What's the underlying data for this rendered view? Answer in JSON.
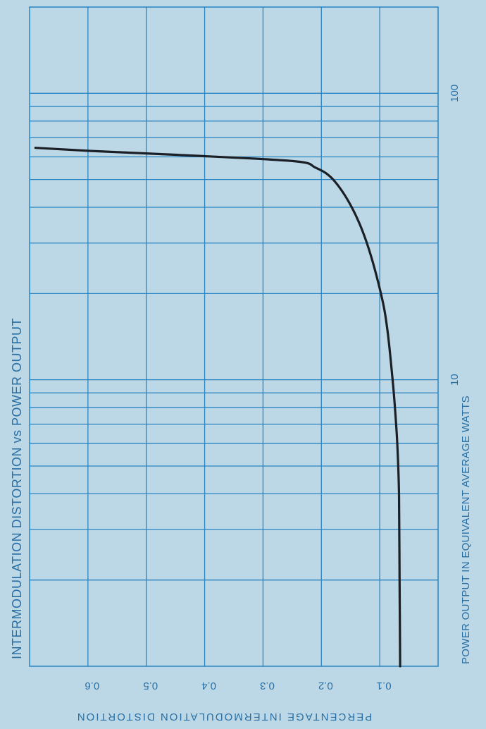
{
  "chart_data": {
    "type": "line",
    "title": "INTERMODULATION DISTORTION vs POWER OUTPUT",
    "xlabel": "POWER OUTPUT IN EQUIVALENT AVERAGE WATTS",
    "ylabel": "PERCENTAGE INTERMODULATION DISTORTION",
    "x_scale": "log",
    "xlim": [
      1,
      200
    ],
    "ylim": [
      0,
      0.7
    ],
    "x_ticks": [
      {
        "value": 10,
        "label": "10"
      },
      {
        "value": 100,
        "label": "100"
      }
    ],
    "y_ticks": [
      {
        "value": 0.1,
        "label": "0.1"
      },
      {
        "value": 0.2,
        "label": "0.2"
      },
      {
        "value": 0.3,
        "label": "0.3"
      },
      {
        "value": 0.4,
        "label": "0.4"
      },
      {
        "value": 0.5,
        "label": "0.5"
      },
      {
        "value": 0.6,
        "label": "0.6"
      }
    ],
    "grid": true,
    "series": [
      {
        "color": "#1b1f26",
        "points": [
          {
            "x": 1,
            "y": 0.065
          },
          {
            "x": 2,
            "y": 0.066
          },
          {
            "x": 4,
            "y": 0.067
          },
          {
            "x": 6,
            "y": 0.07
          },
          {
            "x": 8,
            "y": 0.074
          },
          {
            "x": 10,
            "y": 0.078
          },
          {
            "x": 15,
            "y": 0.087
          },
          {
            "x": 20,
            "y": 0.098
          },
          {
            "x": 30,
            "y": 0.122
          },
          {
            "x": 40,
            "y": 0.148
          },
          {
            "x": 50,
            "y": 0.18
          },
          {
            "x": 55,
            "y": 0.21
          },
          {
            "x": 58,
            "y": 0.25
          },
          {
            "x": 61,
            "y": 0.45
          },
          {
            "x": 63,
            "y": 0.6
          },
          {
            "x": 64.5,
            "y": 0.69
          }
        ]
      }
    ]
  },
  "colors": {
    "background": "#bcd8e6",
    "grid": "#2a84c2",
    "text": "#2a6fa3",
    "curve": "#1b1f26"
  }
}
